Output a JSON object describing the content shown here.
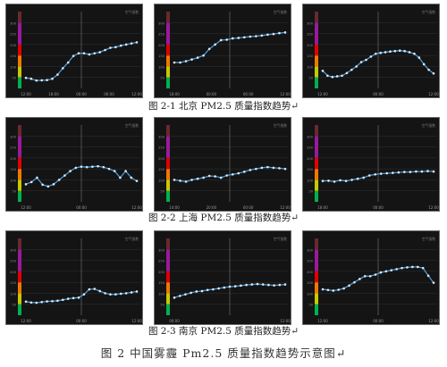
{
  "captions": {
    "row1": "图 2-1 北京 PM2.5 质量指数趋势",
    "row2": "图 2-2 上海 PM2.5 质量指数趋势",
    "row3": "图 2-3 南京 PM2.5 质量指数趋势",
    "figure": "图  2    中国雾霾 Pm2.5 质量指数趋势示意图"
  },
  "paragraph_mark": "↵",
  "panel_corner_label": "空气指数",
  "chart_data": [
    {
      "type": "line",
      "city": "北京",
      "ylim": [
        0,
        350
      ],
      "yticks": [
        50,
        100,
        150,
        200,
        250,
        300
      ],
      "xticks": [
        "12:00",
        "18:00",
        "00:00",
        "06:00",
        "12:00"
      ],
      "values": [
        48,
        44,
        36,
        37,
        38,
        44,
        63,
        92,
        118,
        148,
        160,
        160,
        155,
        160,
        165,
        175,
        185,
        188,
        195,
        200,
        205,
        210
      ]
    },
    {
      "type": "line",
      "city": "北京",
      "ylim": [
        0,
        350
      ],
      "yticks": [
        50,
        100,
        150,
        200,
        250,
        300
      ],
      "xticks": [
        "18:00",
        "00:00",
        "06:00",
        "12:00"
      ],
      "values": [
        118,
        118,
        124,
        132,
        140,
        150,
        180,
        200,
        220,
        222,
        228,
        230,
        233,
        236,
        238,
        241,
        245,
        248,
        252,
        255
      ]
    },
    {
      "type": "line",
      "city": "北京",
      "ylim": [
        0,
        350
      ],
      "yticks": [
        50,
        100,
        150,
        200,
        250,
        300
      ],
      "xticks": [
        "12:00",
        "00:00",
        "12:00"
      ],
      "values": [
        80,
        58,
        52,
        55,
        58,
        70,
        85,
        100,
        120,
        130,
        145,
        158,
        162,
        165,
        168,
        170,
        172,
        170,
        165,
        158,
        140,
        110,
        85,
        68
      ]
    },
    {
      "type": "line",
      "city": "上海",
      "ylim": [
        0,
        350
      ],
      "yticks": [
        50,
        100,
        150,
        200,
        250,
        300
      ],
      "xticks": [
        "12:00",
        "00:00",
        "12:00"
      ],
      "values": [
        80,
        90,
        110,
        78,
        70,
        80,
        100,
        120,
        140,
        155,
        160,
        158,
        160,
        162,
        158,
        150,
        140,
        110,
        140,
        110,
        95
      ]
    },
    {
      "type": "line",
      "city": "上海",
      "ylim": [
        0,
        350
      ],
      "yticks": [
        50,
        100,
        150,
        200,
        250,
        300
      ],
      "xticks": [
        "14:00",
        "20:00",
        "00:00",
        "12:00"
      ],
      "values": [
        100,
        96,
        92,
        100,
        105,
        110,
        118,
        116,
        110,
        120,
        125,
        130,
        137,
        145,
        150,
        155,
        158,
        155,
        153,
        150
      ]
    },
    {
      "type": "line",
      "city": "上海",
      "ylim": [
        0,
        350
      ],
      "yticks": [
        50,
        100,
        150,
        200,
        250,
        300
      ],
      "xticks": [
        "18:00",
        "00:00",
        "12:00"
      ],
      "values": [
        95,
        96,
        92,
        98,
        95,
        100,
        105,
        110,
        120,
        125,
        128,
        130,
        132,
        134,
        136,
        136,
        138,
        138,
        140,
        138
      ]
    },
    {
      "type": "line",
      "city": "南京",
      "ylim": [
        0,
        350
      ],
      "yticks": [
        50,
        100,
        150,
        200,
        250,
        300
      ],
      "xticks": [
        "12:00",
        "00:00",
        "12:00"
      ],
      "values": [
        62,
        58,
        57,
        60,
        63,
        64,
        66,
        70,
        75,
        78,
        80,
        95,
        118,
        120,
        110,
        100,
        95,
        95,
        98,
        100,
        104,
        108
      ]
    },
    {
      "type": "line",
      "city": "南京",
      "ylim": [
        0,
        350
      ],
      "yticks": [
        50,
        100,
        150,
        200,
        250,
        300
      ],
      "xticks": [
        "00:00",
        "12:00"
      ],
      "values": [
        80,
        88,
        95,
        102,
        108,
        110,
        115,
        118,
        122,
        126,
        130,
        132,
        135,
        138,
        140,
        142,
        140,
        138,
        136,
        138,
        140
      ]
    },
    {
      "type": "line",
      "city": "南京",
      "ylim": [
        0,
        350
      ],
      "yticks": [
        50,
        100,
        150,
        200,
        250,
        300
      ],
      "xticks": [
        "12:00",
        "00:00",
        "12:00"
      ],
      "values": [
        118,
        115,
        112,
        116,
        122,
        135,
        150,
        165,
        178,
        178,
        185,
        195,
        200,
        205,
        210,
        215,
        218,
        220,
        220,
        215,
        180,
        148
      ]
    }
  ]
}
